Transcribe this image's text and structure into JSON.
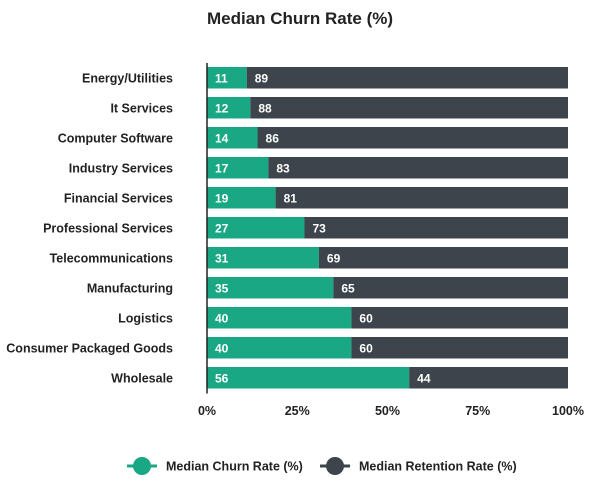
{
  "chart_data": {
    "type": "bar",
    "orientation": "horizontal",
    "stacked": true,
    "title": "Median Churn Rate (%)",
    "categories": [
      "Energy/Utilities",
      "It Services",
      "Computer Software",
      "Industry Services",
      "Financial Services",
      "Professional Services",
      "Telecommunications",
      "Manufacturing",
      "Logistics",
      "Consumer Packaged Goods",
      "Wholesale"
    ],
    "series": [
      {
        "name": "Median Churn Rate (%)",
        "color": "#1aa884",
        "values": [
          11,
          12,
          14,
          17,
          19,
          27,
          31,
          35,
          40,
          40,
          56
        ]
      },
      {
        "name": "Median Retention Rate (%)",
        "color": "#3d444c",
        "values": [
          89,
          88,
          86,
          83,
          81,
          73,
          69,
          65,
          60,
          60,
          44
        ]
      }
    ],
    "xlim": [
      0,
      100
    ],
    "xticks": [
      0,
      25,
      50,
      75,
      100
    ],
    "xtick_labels": [
      "0%",
      "25%",
      "50%",
      "75%",
      "100%"
    ],
    "xlabel": "",
    "ylabel": "",
    "grid": false,
    "legend_position": "bottom-center"
  }
}
